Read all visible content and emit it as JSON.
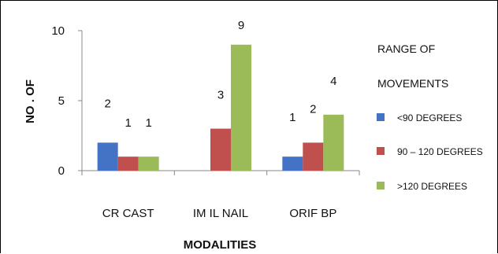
{
  "chart_data": {
    "type": "bar",
    "categories": [
      "CR CAST",
      "IM IL NAIL",
      "ORIF BP"
    ],
    "series": [
      {
        "name": "<90 DEGREES",
        "color": "#4472C4",
        "values": [
          2,
          null,
          1
        ],
        "labels": [
          "2",
          "",
          "1"
        ]
      },
      {
        "name": "90 – 120 DEGREES",
        "color": "#C0504D",
        "values": [
          1,
          3,
          2
        ],
        "labels": [
          "1",
          "3",
          "2"
        ]
      },
      {
        "name": ">120 DEGREES",
        "color": "#9BBB59",
        "values": [
          1,
          9,
          4
        ],
        "labels": [
          "1",
          "9",
          "4"
        ]
      }
    ],
    "xlabel": "MODALITIES",
    "ylabel": "NO . OF",
    "ylim": [
      0,
      10
    ],
    "yticks": [
      0,
      5,
      10
    ],
    "grid": false,
    "legend": {
      "title_line1": "RANGE OF",
      "title_line2": "MOVEMENTS",
      "placement": "right"
    }
  }
}
